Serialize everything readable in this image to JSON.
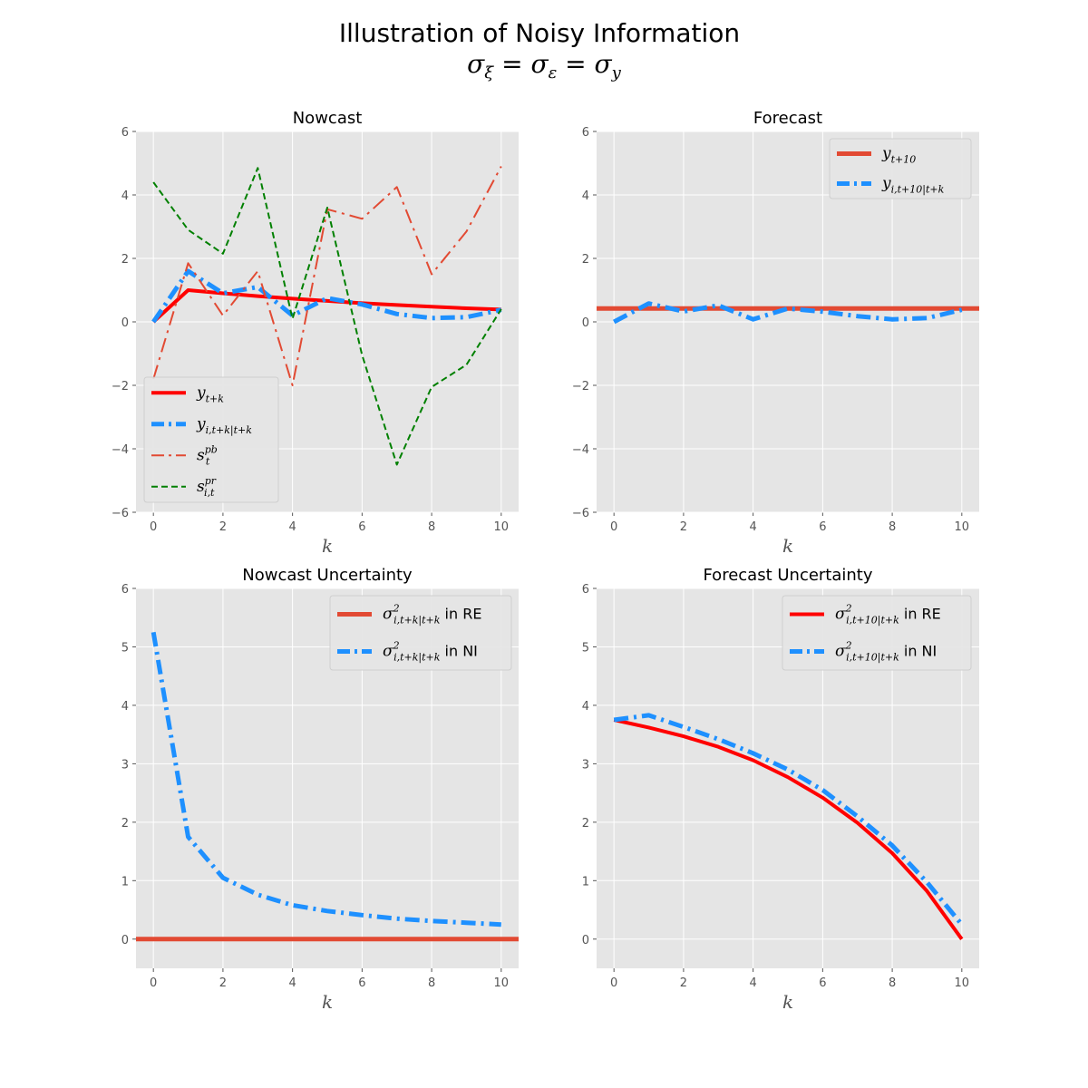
{
  "title": "Illustration of Noisy Information",
  "subtitle": {
    "lhs": "σ",
    "lhs_sub": "ξ",
    "mid": "σ",
    "mid_sub": "ε",
    "rhs": "σ",
    "rhs_sub": "y",
    "eq": " = "
  },
  "colors": {
    "background": "#e5e5e5",
    "grid": "#ffffff",
    "red": "#ff0000",
    "orange_red": "#e24a33",
    "blue": "#1e90ff",
    "green": "#008000"
  },
  "chart_data": [
    {
      "type": "line",
      "title": "Nowcast",
      "xlabel": "k",
      "ylabel": "",
      "xlim": [
        -0.5,
        10.5
      ],
      "ylim": [
        -6,
        6
      ],
      "xticks": [
        0,
        2,
        4,
        6,
        8,
        10
      ],
      "yticks": [
        -6,
        -4,
        -2,
        0,
        2,
        4,
        6
      ],
      "grid": true,
      "legend": "lower-left",
      "series": [
        {
          "name": "y",
          "sub": "t+k",
          "sup": "",
          "color": "#ff0000",
          "width": 4,
          "dash": "solid",
          "x": [
            0,
            1,
            2,
            3,
            4,
            5,
            6,
            7,
            8,
            9,
            10
          ],
          "values": [
            0,
            1.0,
            0.9,
            0.81,
            0.73,
            0.66,
            0.59,
            0.53,
            0.48,
            0.43,
            0.39
          ]
        },
        {
          "name": "y",
          "sub": "i,t+k|t+k",
          "sup": "",
          "color": "#1e90ff",
          "width": 5,
          "dash": "dashdot",
          "x": [
            0,
            1,
            2,
            3,
            4,
            5,
            6,
            7,
            8,
            9,
            10
          ],
          "values": [
            0,
            1.6,
            0.9,
            1.1,
            0.2,
            0.75,
            0.55,
            0.25,
            0.12,
            0.15,
            0.38
          ]
        },
        {
          "name": "s",
          "sub": "t",
          "sup": "pb",
          "color": "#e24a33",
          "width": 2,
          "dash": "dashdot",
          "x": [
            0,
            1,
            2,
            3,
            4,
            5,
            6,
            7,
            8,
            9,
            10
          ],
          "values": [
            -1.8,
            1.85,
            0.2,
            1.6,
            -2.0,
            3.55,
            3.25,
            4.25,
            1.5,
            2.85,
            4.9
          ]
        },
        {
          "name": "s",
          "sub": "i,t",
          "sup": "pr",
          "color": "#008000",
          "width": 2,
          "dash": "dashed",
          "x": [
            0,
            1,
            2,
            3,
            4,
            5,
            6,
            7,
            8,
            9,
            10
          ],
          "values": [
            4.4,
            2.9,
            2.15,
            4.85,
            0.1,
            3.6,
            -1.05,
            -4.5,
            -2.05,
            -1.35,
            0.4
          ]
        }
      ]
    },
    {
      "type": "line",
      "title": "Forecast",
      "xlabel": "k",
      "ylabel": "",
      "xlim": [
        -0.5,
        10.5
      ],
      "ylim": [
        -6,
        6
      ],
      "xticks": [
        0,
        2,
        4,
        6,
        8,
        10
      ],
      "yticks": [
        -6,
        -4,
        -2,
        0,
        2,
        4,
        6
      ],
      "grid": true,
      "legend": "upper-right",
      "series": [
        {
          "name": "y",
          "sub": "t+10",
          "sup": "",
          "color": "#e24a33",
          "width": 5,
          "dash": "solid",
          "x": [
            -0.5,
            10.5
          ],
          "values": [
            0.42,
            0.42
          ]
        },
        {
          "name": "y",
          "sub": "i,t+10|t+k",
          "sup": "",
          "color": "#1e90ff",
          "width": 5,
          "dash": "dashdot",
          "x": [
            0,
            1,
            2,
            3,
            4,
            5,
            6,
            7,
            8,
            9,
            10
          ],
          "values": [
            0,
            0.58,
            0.33,
            0.52,
            0.08,
            0.42,
            0.32,
            0.18,
            0.08,
            0.12,
            0.38
          ]
        }
      ]
    },
    {
      "type": "line",
      "title": "Nowcast Uncertainty",
      "xlabel": "k",
      "ylabel": "",
      "xlim": [
        -0.5,
        10.5
      ],
      "ylim": [
        -0.5,
        6
      ],
      "xticks": [
        0,
        2,
        4,
        6,
        8,
        10
      ],
      "yticks": [
        0,
        1,
        2,
        3,
        4,
        5,
        6
      ],
      "grid": true,
      "legend": "upper-right",
      "series": [
        {
          "name": "σ",
          "sub": "i,t+k|t+k",
          "sup": "2",
          "suffix": " in RE",
          "color": "#e24a33",
          "width": 5,
          "dash": "solid",
          "x": [
            -0.5,
            10.5
          ],
          "values": [
            0,
            0
          ]
        },
        {
          "name": "σ",
          "sub": "i,t+k|t+k",
          "sup": "2",
          "suffix": " in NI",
          "color": "#1e90ff",
          "width": 5,
          "dash": "dashdot",
          "x": [
            0,
            1,
            2,
            3,
            4,
            5,
            6,
            7,
            8,
            9,
            10
          ],
          "values": [
            5.25,
            1.75,
            1.05,
            0.76,
            0.58,
            0.48,
            0.41,
            0.35,
            0.31,
            0.28,
            0.25
          ]
        }
      ]
    },
    {
      "type": "line",
      "title": "Forecast Uncertainty",
      "xlabel": "k",
      "ylabel": "",
      "xlim": [
        -0.5,
        10.5
      ],
      "ylim": [
        -0.5,
        6
      ],
      "xticks": [
        0,
        2,
        4,
        6,
        8,
        10
      ],
      "yticks": [
        0,
        1,
        2,
        3,
        4,
        5,
        6
      ],
      "grid": true,
      "legend": "upper-right",
      "series": [
        {
          "name": "σ",
          "sub": "i,t+10|t+k",
          "sup": "2",
          "suffix": " in RE",
          "color": "#ff0000",
          "width": 4,
          "dash": "solid",
          "x": [
            0,
            1,
            2,
            3,
            4,
            5,
            6,
            7,
            8,
            9,
            10
          ],
          "values": [
            3.75,
            3.62,
            3.47,
            3.29,
            3.06,
            2.77,
            2.42,
            1.99,
            1.47,
            0.82,
            0
          ]
        },
        {
          "name": "σ",
          "sub": "i,t+10|t+k",
          "sup": "2",
          "suffix": " in NI",
          "color": "#1e90ff",
          "width": 5,
          "dash": "dashdot",
          "x": [
            0,
            1,
            2,
            3,
            4,
            5,
            6,
            7,
            8,
            9,
            10
          ],
          "values": [
            3.75,
            3.83,
            3.63,
            3.42,
            3.18,
            2.9,
            2.55,
            2.1,
            1.6,
            0.97,
            0.25
          ]
        }
      ]
    }
  ]
}
